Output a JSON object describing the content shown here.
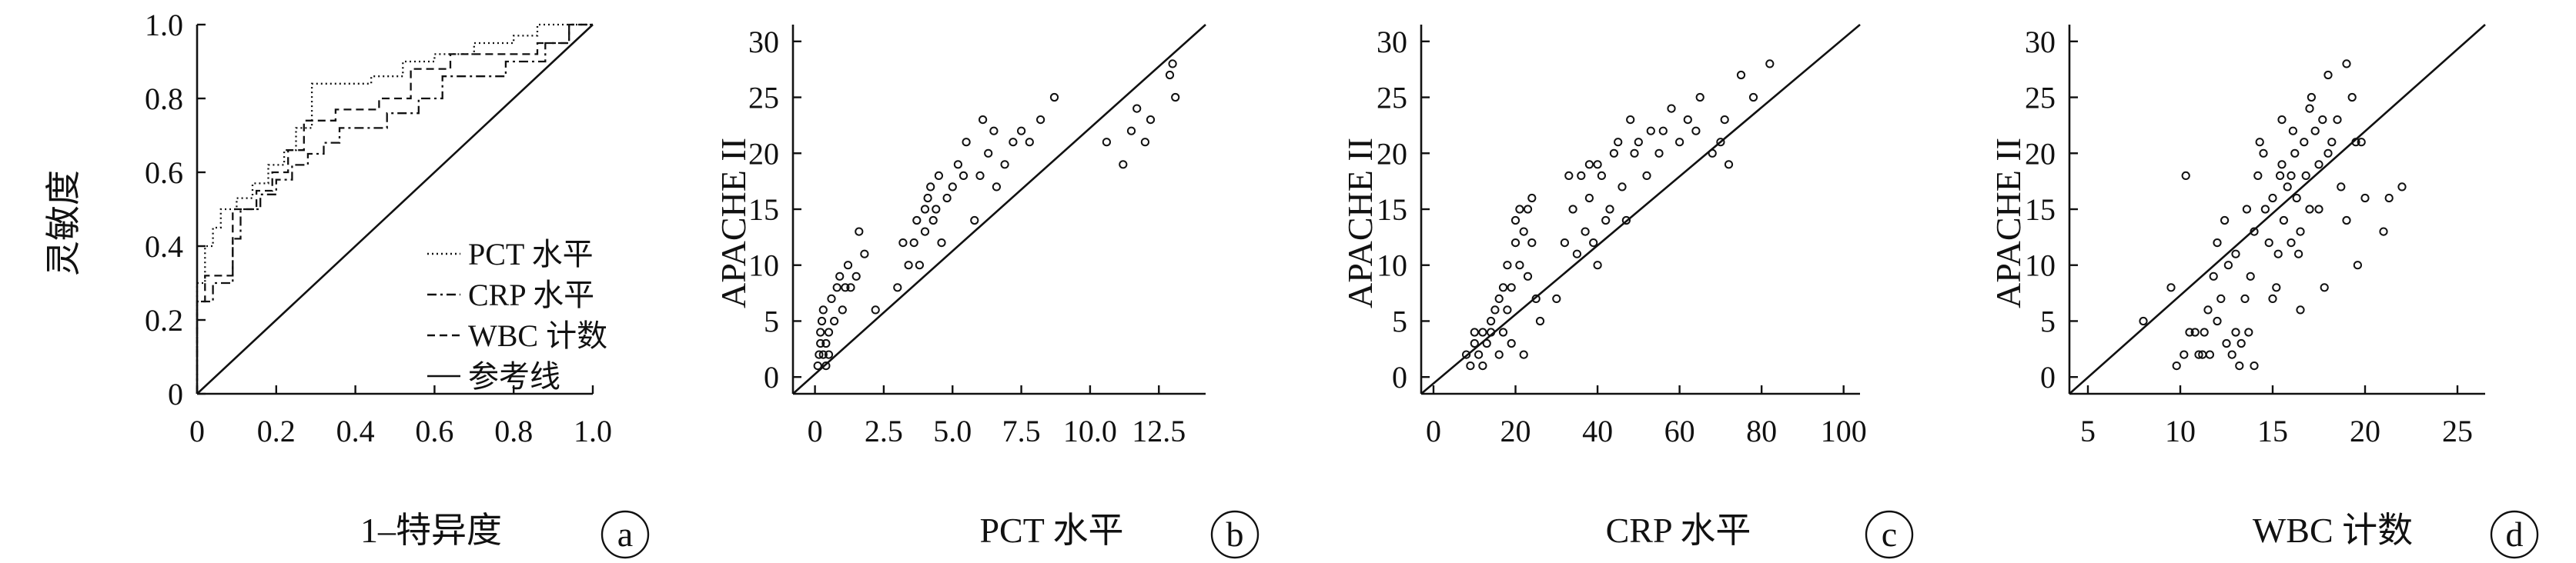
{
  "chart_data": [
    {
      "panel": "a",
      "type": "line",
      "xlabel": "1–特异度",
      "ylabel": "灵敏度",
      "xlim": [
        0,
        1.0
      ],
      "ylim": [
        0,
        1.0
      ],
      "xticks": [
        "0",
        "0.2",
        "0.4",
        "0.6",
        "0.8",
        "1.0"
      ],
      "yticks": [
        "0",
        "0.2",
        "0.4",
        "0.6",
        "0.8",
        "1.0"
      ],
      "legend": [
        "PCT 水平",
        "CRP 水平",
        "WBC 计数",
        "参考线"
      ],
      "legend_position": "bottom-right",
      "series": [
        {
          "name": "PCT 水平",
          "style": "dotted",
          "points": [
            [
              0,
              0
            ],
            [
              0,
              0.3
            ],
            [
              0.02,
              0.3
            ],
            [
              0.02,
              0.4
            ],
            [
              0.04,
              0.4
            ],
            [
              0.04,
              0.45
            ],
            [
              0.06,
              0.45
            ],
            [
              0.06,
              0.5
            ],
            [
              0.1,
              0.5
            ],
            [
              0.1,
              0.53
            ],
            [
              0.14,
              0.53
            ],
            [
              0.14,
              0.57
            ],
            [
              0.18,
              0.57
            ],
            [
              0.18,
              0.62
            ],
            [
              0.22,
              0.62
            ],
            [
              0.22,
              0.66
            ],
            [
              0.25,
              0.66
            ],
            [
              0.25,
              0.72
            ],
            [
              0.29,
              0.72
            ],
            [
              0.29,
              0.84
            ],
            [
              0.44,
              0.84
            ],
            [
              0.44,
              0.86
            ],
            [
              0.52,
              0.86
            ],
            [
              0.52,
              0.9
            ],
            [
              0.6,
              0.9
            ],
            [
              0.6,
              0.92
            ],
            [
              0.7,
              0.92
            ],
            [
              0.7,
              0.95
            ],
            [
              0.8,
              0.95
            ],
            [
              0.8,
              0.97
            ],
            [
              0.86,
              0.97
            ],
            [
              0.86,
              1.0
            ],
            [
              1.0,
              1.0
            ]
          ]
        },
        {
          "name": "CRP 水平",
          "style": "dash-dot",
          "points": [
            [
              0,
              0
            ],
            [
              0,
              0.25
            ],
            [
              0.04,
              0.25
            ],
            [
              0.04,
              0.3
            ],
            [
              0.09,
              0.3
            ],
            [
              0.09,
              0.42
            ],
            [
              0.11,
              0.42
            ],
            [
              0.11,
              0.5
            ],
            [
              0.16,
              0.5
            ],
            [
              0.16,
              0.54
            ],
            [
              0.2,
              0.54
            ],
            [
              0.2,
              0.58
            ],
            [
              0.24,
              0.58
            ],
            [
              0.24,
              0.62
            ],
            [
              0.28,
              0.62
            ],
            [
              0.28,
              0.65
            ],
            [
              0.32,
              0.65
            ],
            [
              0.32,
              0.68
            ],
            [
              0.36,
              0.68
            ],
            [
              0.36,
              0.72
            ],
            [
              0.48,
              0.72
            ],
            [
              0.48,
              0.76
            ],
            [
              0.56,
              0.76
            ],
            [
              0.56,
              0.8
            ],
            [
              0.62,
              0.8
            ],
            [
              0.62,
              0.86
            ],
            [
              0.78,
              0.86
            ],
            [
              0.78,
              0.9
            ],
            [
              0.88,
              0.9
            ],
            [
              0.88,
              0.95
            ],
            [
              0.94,
              0.95
            ],
            [
              0.94,
              1.0
            ],
            [
              1.0,
              1.0
            ]
          ]
        },
        {
          "name": "WBC 计数",
          "style": "dashed",
          "points": [
            [
              0,
              0
            ],
            [
              0,
              0.25
            ],
            [
              0.02,
              0.25
            ],
            [
              0.02,
              0.32
            ],
            [
              0.09,
              0.32
            ],
            [
              0.09,
              0.5
            ],
            [
              0.15,
              0.5
            ],
            [
              0.15,
              0.55
            ],
            [
              0.19,
              0.55
            ],
            [
              0.19,
              0.6
            ],
            [
              0.23,
              0.6
            ],
            [
              0.23,
              0.66
            ],
            [
              0.27,
              0.66
            ],
            [
              0.27,
              0.74
            ],
            [
              0.35,
              0.74
            ],
            [
              0.35,
              0.77
            ],
            [
              0.46,
              0.77
            ],
            [
              0.46,
              0.8
            ],
            [
              0.54,
              0.8
            ],
            [
              0.54,
              0.88
            ],
            [
              0.64,
              0.88
            ],
            [
              0.64,
              0.92
            ],
            [
              0.86,
              0.92
            ],
            [
              0.86,
              0.95
            ],
            [
              0.94,
              0.95
            ],
            [
              0.94,
              1.0
            ],
            [
              1.0,
              1.0
            ]
          ]
        },
        {
          "name": "参考线",
          "style": "solid",
          "points": [
            [
              0,
              0
            ],
            [
              1,
              1
            ]
          ]
        }
      ]
    },
    {
      "panel": "b",
      "type": "scatter",
      "xlabel": "PCT 水平",
      "ylabel": "APACHE II",
      "xlim": [
        -0.8,
        14.2
      ],
      "ylim": [
        -1.5,
        31.5
      ],
      "xticks": [
        "0",
        "2.5",
        "5.0",
        "7.5",
        "10.0",
        "12.5"
      ],
      "yticks": [
        "0",
        "5",
        "10",
        "15",
        "20",
        "25",
        "30"
      ],
      "reference_line": [
        [
          -0.8,
          -1.5
        ],
        [
          14.2,
          31.5
        ]
      ],
      "points": [
        [
          0.1,
          1
        ],
        [
          0.15,
          2
        ],
        [
          0.2,
          3
        ],
        [
          0.2,
          4
        ],
        [
          0.25,
          5
        ],
        [
          0.3,
          2
        ],
        [
          0.3,
          6
        ],
        [
          0.4,
          1
        ],
        [
          0.4,
          3
        ],
        [
          0.5,
          2
        ],
        [
          0.5,
          4
        ],
        [
          0.6,
          7
        ],
        [
          0.7,
          5
        ],
        [
          0.8,
          8
        ],
        [
          0.9,
          9
        ],
        [
          1.0,
          6
        ],
        [
          1.1,
          8
        ],
        [
          1.2,
          10
        ],
        [
          1.3,
          8
        ],
        [
          1.5,
          9
        ],
        [
          1.6,
          13
        ],
        [
          1.8,
          11
        ],
        [
          2.2,
          6
        ],
        [
          3.0,
          8
        ],
        [
          3.2,
          12
        ],
        [
          3.4,
          10
        ],
        [
          3.6,
          12
        ],
        [
          3.7,
          14
        ],
        [
          3.8,
          10
        ],
        [
          4.0,
          13
        ],
        [
          4.0,
          15
        ],
        [
          4.1,
          16
        ],
        [
          4.2,
          17
        ],
        [
          4.3,
          14
        ],
        [
          4.4,
          15
        ],
        [
          4.5,
          18
        ],
        [
          4.6,
          12
        ],
        [
          4.8,
          16
        ],
        [
          5.0,
          17
        ],
        [
          5.2,
          19
        ],
        [
          5.4,
          18
        ],
        [
          5.5,
          21
        ],
        [
          5.8,
          14
        ],
        [
          6.0,
          18
        ],
        [
          6.1,
          23
        ],
        [
          6.3,
          20
        ],
        [
          6.5,
          22
        ],
        [
          6.6,
          17
        ],
        [
          6.9,
          19
        ],
        [
          7.2,
          21
        ],
        [
          7.5,
          22
        ],
        [
          7.8,
          21
        ],
        [
          8.2,
          23
        ],
        [
          8.7,
          25
        ],
        [
          10.6,
          21
        ],
        [
          11.2,
          19
        ],
        [
          11.5,
          22
        ],
        [
          11.7,
          24
        ],
        [
          12.0,
          21
        ],
        [
          12.2,
          23
        ],
        [
          12.9,
          27
        ],
        [
          13.0,
          28
        ],
        [
          13.1,
          25
        ]
      ]
    },
    {
      "panel": "c",
      "type": "scatter",
      "xlabel": "CRP 水平",
      "ylabel": "APACHE II",
      "xlim": [
        -3,
        104
      ],
      "ylim": [
        -1.5,
        31.5
      ],
      "xticks": [
        "0",
        "20",
        "40",
        "60",
        "80",
        "100"
      ],
      "yticks": [
        "0",
        "5",
        "10",
        "15",
        "20",
        "25",
        "30"
      ],
      "reference_line": [
        [
          -3,
          -1.5
        ],
        [
          104,
          31.5
        ]
      ],
      "points": [
        [
          8,
          2
        ],
        [
          9,
          1
        ],
        [
          10,
          3
        ],
        [
          10,
          4
        ],
        [
          11,
          2
        ],
        [
          12,
          1
        ],
        [
          12,
          4
        ],
        [
          13,
          3
        ],
        [
          14,
          5
        ],
        [
          14,
          4
        ],
        [
          15,
          6
        ],
        [
          16,
          2
        ],
        [
          16,
          7
        ],
        [
          17,
          8
        ],
        [
          17,
          4
        ],
        [
          18,
          6
        ],
        [
          18,
          10
        ],
        [
          19,
          3
        ],
        [
          19,
          8
        ],
        [
          20,
          12
        ],
        [
          20,
          14
        ],
        [
          21,
          15
        ],
        [
          21,
          10
        ],
        [
          22,
          13
        ],
        [
          22,
          2
        ],
        [
          23,
          9
        ],
        [
          23,
          15
        ],
        [
          24,
          12
        ],
        [
          24,
          16
        ],
        [
          25,
          7
        ],
        [
          26,
          5
        ],
        [
          30,
          7
        ],
        [
          32,
          12
        ],
        [
          33,
          18
        ],
        [
          34,
          15
        ],
        [
          35,
          11
        ],
        [
          36,
          18
        ],
        [
          37,
          13
        ],
        [
          38,
          19
        ],
        [
          38,
          16
        ],
        [
          39,
          12
        ],
        [
          40,
          10
        ],
        [
          40,
          19
        ],
        [
          41,
          18
        ],
        [
          42,
          14
        ],
        [
          43,
          15
        ],
        [
          44,
          20
        ],
        [
          45,
          21
        ],
        [
          46,
          17
        ],
        [
          47,
          14
        ],
        [
          48,
          23
        ],
        [
          49,
          20
        ],
        [
          50,
          21
        ],
        [
          52,
          18
        ],
        [
          53,
          22
        ],
        [
          55,
          20
        ],
        [
          56,
          22
        ],
        [
          58,
          24
        ],
        [
          60,
          21
        ],
        [
          62,
          23
        ],
        [
          64,
          22
        ],
        [
          65,
          25
        ],
        [
          68,
          20
        ],
        [
          70,
          21
        ],
        [
          71,
          23
        ],
        [
          72,
          19
        ],
        [
          75,
          27
        ],
        [
          78,
          25
        ],
        [
          82,
          28
        ]
      ]
    },
    {
      "panel": "d",
      "type": "scatter",
      "xlabel": "WBC 计数",
      "ylabel": "APACHE II",
      "xlim": [
        4.0,
        26.5
      ],
      "ylim": [
        -1.5,
        31.5
      ],
      "xticks": [
        "5",
        "10",
        "15",
        "20",
        "25"
      ],
      "yticks": [
        "0",
        "5",
        "10",
        "15",
        "20",
        "25",
        "30"
      ],
      "reference_line": [
        [
          4.0,
          -1.5
        ],
        [
          26.5,
          31.5
        ]
      ],
      "points": [
        [
          8.0,
          5
        ],
        [
          9.5,
          8
        ],
        [
          9.8,
          1
        ],
        [
          10.2,
          2
        ],
        [
          10.3,
          18
        ],
        [
          10.5,
          4
        ],
        [
          10.8,
          4
        ],
        [
          11.0,
          2
        ],
        [
          11.2,
          2
        ],
        [
          11.3,
          4
        ],
        [
          11.5,
          6
        ],
        [
          11.6,
          2
        ],
        [
          11.8,
          9
        ],
        [
          12.0,
          12
        ],
        [
          12.0,
          5
        ],
        [
          12.2,
          7
        ],
        [
          12.4,
          14
        ],
        [
          12.5,
          3
        ],
        [
          12.6,
          10
        ],
        [
          12.8,
          2
        ],
        [
          13.0,
          4
        ],
        [
          13.0,
          11
        ],
        [
          13.2,
          1
        ],
        [
          13.3,
          3
        ],
        [
          13.5,
          7
        ],
        [
          13.6,
          15
        ],
        [
          13.7,
          4
        ],
        [
          13.8,
          9
        ],
        [
          14.0,
          13
        ],
        [
          14.0,
          1
        ],
        [
          14.2,
          18
        ],
        [
          14.3,
          21
        ],
        [
          14.5,
          20
        ],
        [
          14.6,
          15
        ],
        [
          14.8,
          12
        ],
        [
          15.0,
          16
        ],
        [
          15.0,
          7
        ],
        [
          15.2,
          8
        ],
        [
          15.3,
          11
        ],
        [
          15.4,
          18
        ],
        [
          15.5,
          23
        ],
        [
          15.5,
          19
        ],
        [
          15.6,
          14
        ],
        [
          15.8,
          17
        ],
        [
          16.0,
          18
        ],
        [
          16.0,
          12
        ],
        [
          16.1,
          22
        ],
        [
          16.2,
          20
        ],
        [
          16.3,
          16
        ],
        [
          16.4,
          11
        ],
        [
          16.5,
          6
        ],
        [
          16.5,
          13
        ],
        [
          16.7,
          21
        ],
        [
          16.8,
          18
        ],
        [
          17.0,
          15
        ],
        [
          17.0,
          24
        ],
        [
          17.1,
          25
        ],
        [
          17.3,
          22
        ],
        [
          17.5,
          15
        ],
        [
          17.5,
          19
        ],
        [
          17.7,
          23
        ],
        [
          17.8,
          8
        ],
        [
          18.0,
          27
        ],
        [
          18.0,
          20
        ],
        [
          18.2,
          21
        ],
        [
          18.5,
          23
        ],
        [
          18.7,
          17
        ],
        [
          19.0,
          28
        ],
        [
          19.0,
          14
        ],
        [
          19.3,
          25
        ],
        [
          19.5,
          21
        ],
        [
          19.6,
          10
        ],
        [
          19.8,
          21
        ],
        [
          20.0,
          16
        ],
        [
          21.0,
          13
        ],
        [
          21.3,
          16
        ],
        [
          22.0,
          17
        ]
      ]
    }
  ],
  "panel_labels": [
    "a",
    "b",
    "c",
    "d"
  ]
}
